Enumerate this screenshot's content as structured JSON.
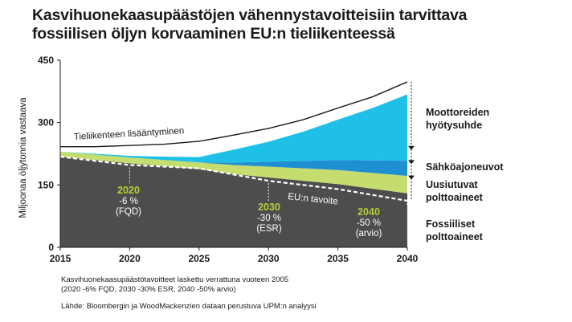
{
  "title": {
    "line1": "Kasvihuonekaasupäästöjen vähennystavoitteisiin tarvittava",
    "line2": "fossiilisen öljyn korvaaminen EU:n tieliikenteessä"
  },
  "notes": {
    "line1": "Kasvihuonekaasupäästötavoitteet laskettu verrattuna vuoteen 2005",
    "line2": "(2020 -6% FQD, 2030 -30% ESR, 2040 -50% arvio)",
    "source": "Lähde: Bloombergin ja WoodMackenzien dataan perustuva UPM:n analyysi"
  },
  "chart_data": {
    "type": "area",
    "ylabel": "Miljoonaa öljytonnia vastaava",
    "xlabel": "",
    "ylim": [
      0,
      450
    ],
    "xlim": [
      2015,
      2040
    ],
    "y_ticks": [
      0,
      150,
      300,
      450
    ],
    "x_ticks": [
      2015,
      2020,
      2025,
      2030,
      2035,
      2040
    ],
    "x": [
      2015,
      2017.5,
      2020,
      2022.5,
      2025,
      2027.5,
      2030,
      2032.5,
      2035,
      2037.5,
      2040
    ],
    "series": [
      {
        "name": "Fossiiliset polttoaineet",
        "color": "#4d4d4d",
        "values": [
          218,
          210,
          202,
          195,
          188,
          176,
          168,
          160,
          152,
          141,
          130
        ]
      },
      {
        "name": "Uusiutuvat polttoaineet",
        "color": "#c5dc6e",
        "values": [
          12,
          13,
          14,
          15,
          16,
          22,
          26,
          30,
          34,
          38,
          42
        ]
      },
      {
        "name": "Sähköajoneuvot",
        "color": "#1e8fd0",
        "values": [
          0,
          0,
          0,
          0,
          0,
          6,
          12,
          18,
          24,
          30,
          36
        ]
      },
      {
        "name": "Moottoreiden hyötysuhde",
        "color": "#1ec0e8",
        "values": [
          0,
          2,
          4,
          8,
          13,
          31,
          48,
          70,
          97,
          126,
          160
        ]
      }
    ],
    "total_line": {
      "label": "Tieliikenteen lisääntyminen",
      "values": [
        242,
        242,
        245,
        248,
        255,
        270,
        286,
        307,
        335,
        362,
        398
      ]
    },
    "target_line": {
      "label": "EU:n tavoite",
      "points": [
        [
          2015,
          218
        ],
        [
          2020,
          198
        ],
        [
          2025,
          190
        ],
        [
          2030,
          160
        ],
        [
          2035,
          140
        ],
        [
          2040,
          112
        ]
      ]
    },
    "annotations": [
      {
        "year": "2020",
        "pct": "-6 %",
        "ref": "(FQD)",
        "x": 2020,
        "y": 198
      },
      {
        "year": "2030",
        "pct": "-30 %",
        "ref": "(ESR)",
        "x": 2030,
        "y": 160
      },
      {
        "year": "2040",
        "pct": "-50 %",
        "ref": "(arvio)",
        "x": 2040,
        "y": 112
      }
    ],
    "legend": [
      {
        "label": "Moottoreiden hyötysuhde",
        "position": "right"
      },
      {
        "label": "Sähköajoneuvot",
        "position": "right"
      },
      {
        "label": "Uusiutuvat polttoaineet",
        "position": "right"
      },
      {
        "label": "Fossiiliset polttoaineet",
        "position": "right"
      }
    ],
    "colors": {
      "highlight": "#b2d235",
      "text": "#1a1a1a"
    }
  }
}
